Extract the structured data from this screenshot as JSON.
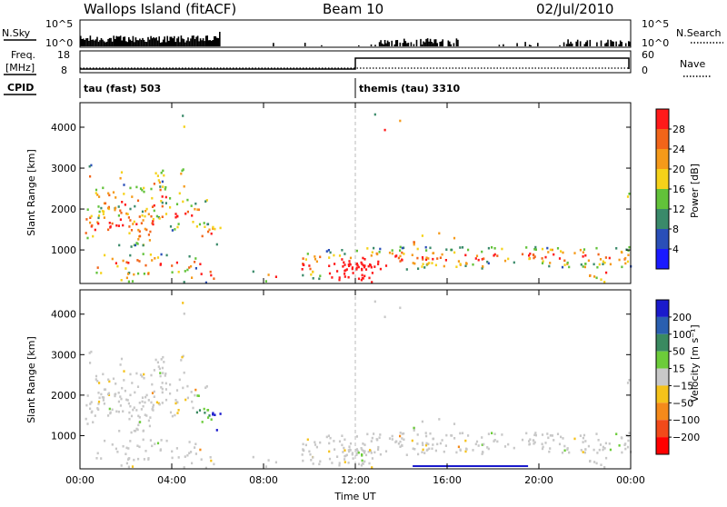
{
  "header": {
    "title": "Wallops Island (fitACF)",
    "beam": "Beam 10",
    "date": "02/Jul/2010"
  },
  "top_panels": {
    "nsky_label": "N.Sky",
    "nsky_ticks": [
      "10^5",
      "10^0"
    ],
    "nsearch_label": "N.Search",
    "nsearch_ticks": [
      "10^5",
      "10^0"
    ],
    "freq_label": "Freq.",
    "freq_unit": "[MHz]",
    "freq_ticks": [
      "18",
      "8"
    ],
    "nave_label": "Nave",
    "nave_ticks": [
      "60",
      "0"
    ],
    "cpid_label": "CPID",
    "cpid_segments": [
      {
        "start_hour": 0,
        "label": "tau (fast) 503"
      },
      {
        "start_hour": 12,
        "label": "themis (tau) 3310"
      }
    ]
  },
  "chart_data": [
    {
      "type": "heatmap",
      "name": "power",
      "ylabel": "Slant Range [km]",
      "xlim_hours": [
        0,
        24
      ],
      "ylim": [
        180,
        4600
      ],
      "yticks": [
        "1000",
        "2000",
        "3000",
        "4000"
      ],
      "colorbar_label": "Power [dB]",
      "colorbar_ticks": [
        "4",
        "8",
        "12",
        "16",
        "20",
        "24",
        "28"
      ],
      "colors": [
        "#1a1aff",
        "#2a4fb8",
        "#3a8a6a",
        "#62c23a",
        "#f5d21a",
        "#f59a1a",
        "#f2651a",
        "#ff1a1a"
      ]
    },
    {
      "type": "heatmap",
      "name": "velocity",
      "ylabel": "Slant Range [km]",
      "xlabel": "Time UT",
      "xlim_hours": [
        0,
        24
      ],
      "ylim": [
        180,
        4600
      ],
      "yticks": [
        "1000",
        "2000",
        "3000",
        "4000"
      ],
      "xticks": [
        "00:00",
        "04:00",
        "08:00",
        "12:00",
        "16:00",
        "20:00",
        "00:00"
      ],
      "colorbar_label": "Velocity [m s⁻¹]",
      "colorbar_ticks": [
        "200",
        "100",
        "50",
        "15",
        "−15",
        "−50",
        "−100",
        "−200"
      ],
      "colors": [
        "#1a1acc",
        "#2a5fb0",
        "#3a8a60",
        "#6ccc3a",
        "#c8c8c8",
        "#f5c21a",
        "#f58a1a",
        "#f24a1a",
        "#ff0000"
      ]
    }
  ]
}
